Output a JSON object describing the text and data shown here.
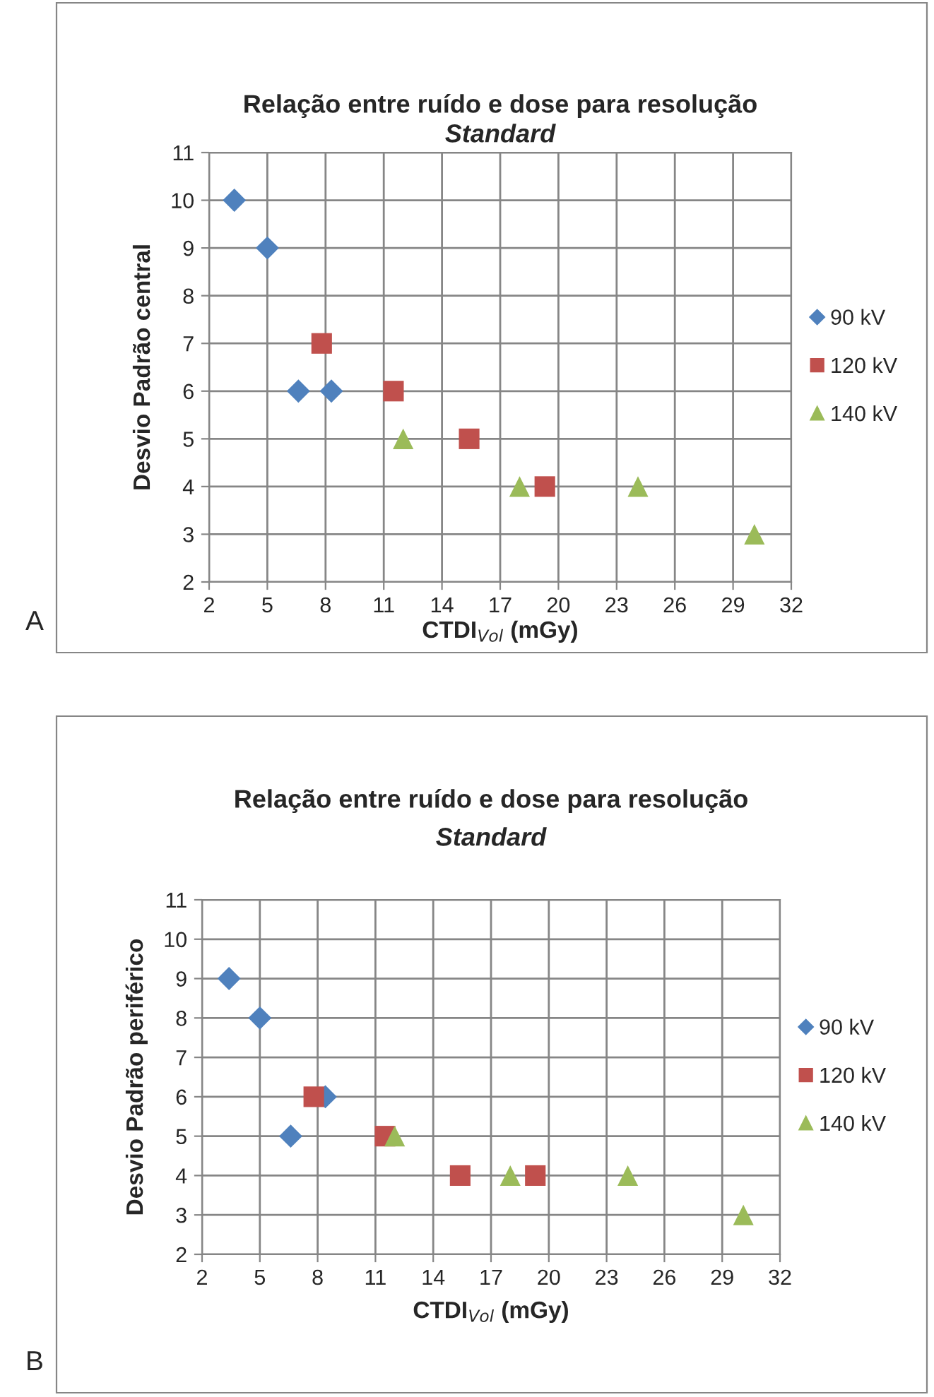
{
  "chart_data": [
    {
      "type": "scatter",
      "title": "Relação entre ruído e dose para resolução\nStandard",
      "xlabel": "CTDI$_{Vol}$ (mGy)",
      "ylabel": "Desvio Padrão central",
      "annotations": [
        "A"
      ],
      "xlim": [
        2,
        32
      ],
      "xticks": [
        2,
        5,
        8,
        11,
        14,
        17,
        20,
        23,
        26,
        29,
        32
      ],
      "ylim": [
        2,
        11
      ],
      "yticks": [
        2,
        3,
        4,
        5,
        6,
        7,
        8,
        9,
        10,
        11
      ],
      "grid": true,
      "legend": "right",
      "series": [
        {
          "name": "90 kV",
          "color": "#4f81bd",
          "marker": "diamond",
          "x": [
            3.3,
            5.0,
            6.6,
            8.3
          ],
          "values": [
            10,
            9,
            6,
            6
          ]
        },
        {
          "name": "120 kV",
          "color": "#c0504d",
          "marker": "square",
          "x": [
            7.8,
            11.5,
            15.4,
            19.3
          ],
          "values": [
            7,
            6,
            5,
            4
          ]
        },
        {
          "name": "140 kV",
          "color": "#9bbb59",
          "marker": "triangle",
          "x": [
            12.0,
            18.0,
            24.1,
            30.1
          ],
          "values": [
            5,
            4,
            4,
            3
          ]
        }
      ]
    },
    {
      "type": "scatter",
      "title": "Relação entre ruído e dose para resolução\nStandard",
      "xlabel": "CTDI$_{Vol}$ (mGy)",
      "ylabel": "Desvio Padrão periférico",
      "annotations": [
        "B"
      ],
      "xlim": [
        2,
        32
      ],
      "xticks": [
        2,
        5,
        8,
        11,
        14,
        17,
        20,
        23,
        26,
        29,
        32
      ],
      "ylim": [
        2,
        11
      ],
      "yticks": [
        2,
        3,
        4,
        5,
        6,
        7,
        8,
        9,
        10,
        11
      ],
      "grid": true,
      "legend": "right",
      "series": [
        {
          "name": "90 kV",
          "color": "#4f81bd",
          "marker": "diamond",
          "x": [
            3.4,
            5.0,
            6.6,
            8.4
          ],
          "values": [
            9,
            8,
            5,
            6
          ]
        },
        {
          "name": "120 kV",
          "color": "#c0504d",
          "marker": "square",
          "x": [
            7.8,
            11.5,
            15.4,
            19.3
          ],
          "values": [
            6,
            5,
            4,
            4
          ]
        },
        {
          "name": "140 kV",
          "color": "#9bbb59",
          "marker": "triangle",
          "x": [
            12.0,
            18.0,
            24.1,
            30.1
          ],
          "values": [
            5,
            4,
            4,
            3
          ]
        }
      ]
    }
  ]
}
